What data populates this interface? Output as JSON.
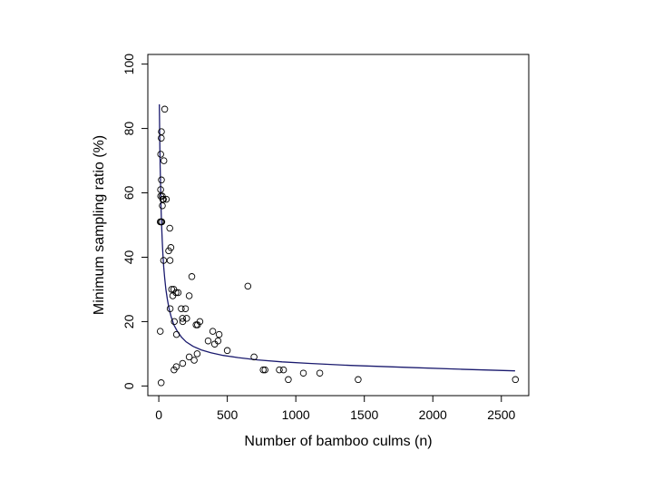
{
  "chart_data": {
    "type": "scatter",
    "title": "",
    "xlabel": "Number of bamboo culms (n)",
    "ylabel": "Minimum sampling ratio (%)",
    "xlim": [
      -80,
      2700
    ],
    "ylim": [
      -3,
      103
    ],
    "xticks": [
      0,
      500,
      1000,
      1500,
      2000,
      2500
    ],
    "yticks": [
      0,
      20,
      40,
      60,
      80,
      100
    ],
    "grid": false,
    "legend": "none",
    "colors": {
      "points": "#000000",
      "curve": "#1a1a6e",
      "frame": "#000000"
    },
    "series": [
      {
        "kind": "points",
        "x": [
          43,
          19,
          18,
          14,
          19,
          37,
          13,
          14,
          25,
          29,
          34,
          55,
          26,
          11,
          18,
          22,
          80,
          88,
          72,
          35,
          82,
          94,
          125,
          109,
          102,
          141,
          222,
          173,
          83,
          195,
          164,
          203,
          175,
          113,
          300,
          283,
          272,
          129,
          241,
          394,
          440,
          432,
          360,
          408,
          500,
          650,
          695,
          762,
          775,
          880,
          910,
          945,
          1055,
          1175,
          1455,
          2603,
          222,
          280,
          258,
          174,
          128,
          111,
          11,
          17
        ],
        "y": [
          86,
          79,
          77,
          72,
          64,
          70,
          61,
          59,
          59,
          58,
          58,
          58,
          56,
          51,
          51,
          51,
          49,
          43,
          42,
          39,
          39,
          30,
          29,
          30,
          28,
          29,
          28,
          21,
          24,
          24,
          24,
          21,
          20,
          20,
          20,
          19,
          19,
          16,
          34,
          17,
          16,
          14,
          14,
          13,
          11,
          31,
          9,
          5,
          5,
          5,
          5,
          2,
          4,
          4,
          2,
          2,
          9,
          10,
          8,
          7,
          6,
          5,
          17,
          1
        ]
      },
      {
        "kind": "curve",
        "x": [
          4,
          6,
          8,
          10,
          13,
          16,
          20,
          25,
          30,
          36,
          43,
          52,
          62,
          75,
          90,
          110,
          135,
          165,
          200,
          250,
          310,
          380,
          470,
          580,
          720,
          900,
          1100,
          1400,
          1800,
          2200,
          2600
        ],
        "y": [
          87.5,
          80,
          73.5,
          68,
          62,
          56,
          50.5,
          45,
          41,
          37,
          33.5,
          30,
          27,
          24,
          21.5,
          19,
          17,
          15.2,
          13.7,
          12.3,
          11.2,
          10.3,
          9.5,
          8.8,
          8.1,
          7.5,
          7,
          6.4,
          5.8,
          5.2,
          4.7
        ]
      }
    ]
  }
}
